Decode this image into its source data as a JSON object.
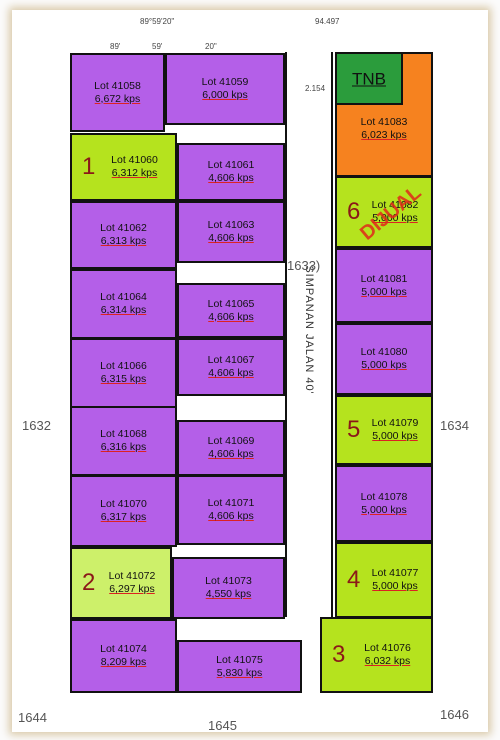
{
  "map": {
    "lots": [
      {
        "label": "Lot 41058",
        "area": "6,672 kps",
        "color": "#b45fe8"
      },
      {
        "label": "Lot 41059",
        "area": "6,000 kps",
        "color": "#b45fe8"
      },
      {
        "label": "Lot 41060",
        "area": "6,312 kps",
        "marker": "1",
        "color": "#b5e31e"
      },
      {
        "label": "Lot 41061",
        "area": "4,606 kps",
        "color": "#b45fe8"
      },
      {
        "label": "Lot 41062",
        "area": "6,313 kps",
        "color": "#b45fe8"
      },
      {
        "label": "Lot 41063",
        "area": "4,606 kps",
        "color": "#b45fe8"
      },
      {
        "label": "Lot 41064",
        "area": "6,314 kps",
        "color": "#b45fe8"
      },
      {
        "label": "Lot 41065",
        "area": "4,606 kps",
        "color": "#b45fe8"
      },
      {
        "label": "Lot 41066",
        "area": "6,315 kps",
        "color": "#b45fe8"
      },
      {
        "label": "Lot 41067",
        "area": "4,606 kps",
        "color": "#b45fe8"
      },
      {
        "label": "Lot 41068",
        "area": "6,316 kps",
        "color": "#b45fe8"
      },
      {
        "label": "Lot 41069",
        "area": "4,606  kps",
        "color": "#b45fe8"
      },
      {
        "label": "Lot 41070",
        "area": "6,317 kps",
        "color": "#b45fe8"
      },
      {
        "label": "Lot 41071",
        "area": "4,606 kps",
        "color": "#b45fe8"
      },
      {
        "label": "Lot 41072",
        "area": "6,297 kps",
        "marker": "2",
        "color": "#cdf06a"
      },
      {
        "label": "Lot 41073",
        "area": "4,550 kps",
        "color": "#b45fe8"
      },
      {
        "label": "Lot 41074",
        "area": "8,209 kps",
        "color": "#b45fe8"
      },
      {
        "label": "Lot 41075",
        "area": "5,830 kps",
        "color": "#b45fe8"
      },
      {
        "label": "Lot 41083",
        "area": "6,023 kps",
        "color": "#f6821f"
      },
      {
        "label": "Lot 41082",
        "area": "5,000 kps",
        "marker": "6",
        "note": "DIJUAL",
        "color": "#b5e31e"
      },
      {
        "label": "Lot 41081",
        "area": "5,000 kps",
        "color": "#b45fe8"
      },
      {
        "label": "Lot 41080",
        "area": "5,000 kps",
        "color": "#b45fe8"
      },
      {
        "label": "Lot 41079",
        "area": "5,000 kps",
        "marker": "5",
        "color": "#b5e31e"
      },
      {
        "label": "Lot 41078",
        "area": "5,000 kps",
        "color": "#b45fe8"
      },
      {
        "label": "Lot 41077",
        "area": "5,000 kps",
        "marker": "4",
        "color": "#b5e31e"
      },
      {
        "label": "Lot 41076",
        "area": "6,032 kps",
        "marker": "3",
        "color": "#b5e31e"
      }
    ],
    "tnb": {
      "label": "TNB",
      "color": "#2b9c3c"
    },
    "road": "SIMPANAN JALAN 40'",
    "neighbours": [
      "1632",
      "1634",
      "1644",
      "1645",
      "1646",
      "1633)"
    ],
    "bearings": [
      "89°59'20\"",
      "94.497",
      "89'",
      "59'",
      "20\"",
      "2.154"
    ]
  }
}
